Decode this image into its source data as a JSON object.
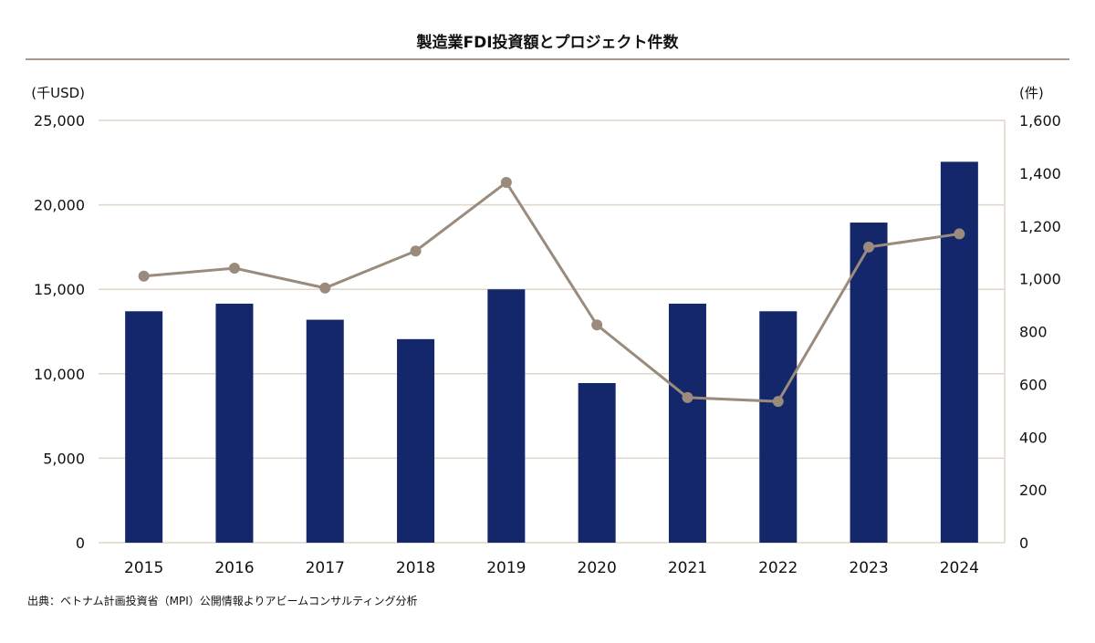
{
  "chart_data": {
    "type": "bar+line",
    "title": "製造業FDI投資額とプロジェクト件数",
    "categories": [
      "2015",
      "2016",
      "2017",
      "2018",
      "2019",
      "2020",
      "2021",
      "2022",
      "2023",
      "2024"
    ],
    "series": [
      {
        "type": "bar",
        "axis": "left",
        "color": "#14276b",
        "values": [
          13700,
          14150,
          13200,
          12050,
          15000,
          9450,
          14150,
          13700,
          18950,
          22550
        ]
      },
      {
        "type": "line",
        "axis": "right",
        "color": "#9a8b7c",
        "values": [
          1010,
          1040,
          965,
          1105,
          1365,
          825,
          550,
          535,
          1120,
          1170
        ]
      }
    ],
    "y_left": {
      "unit": "(千USD)",
      "range": [
        0,
        25000
      ],
      "ticks": [
        "0",
        "5,000",
        "10,000",
        "15,000",
        "20,000",
        "25,000"
      ]
    },
    "y_right": {
      "unit": "(件)",
      "range": [
        0,
        1600
      ],
      "ticks": [
        "0",
        "200",
        "400",
        "600",
        "800",
        "1,000",
        "1,200",
        "1,400",
        "1,600"
      ]
    },
    "grid": true,
    "source": "出典：ベトナム計画投資省（MPI）公開情報よりアビームコンサルティング分析"
  }
}
